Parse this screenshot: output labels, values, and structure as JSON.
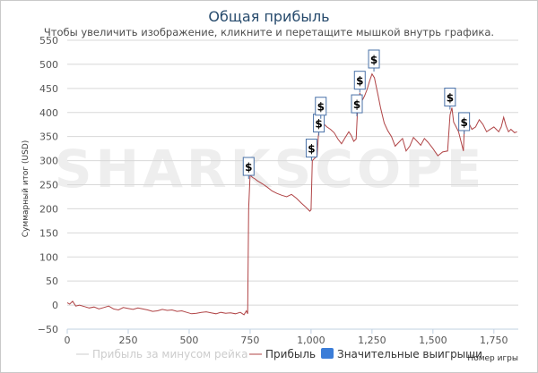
{
  "chart_data": {
    "type": "line",
    "title": "Общая прибыль",
    "subtitle": "Чтобы увеличить изображение, кликните и перетащите мышкой внутрь графика.",
    "ylabel": "Суммарный итог (USD)",
    "xlabel": "Номер игры",
    "xlim": [
      0,
      1850
    ],
    "ylim": [
      -50,
      550
    ],
    "x_ticks": [
      0,
      250,
      500,
      750,
      1000,
      1250,
      1500,
      1750
    ],
    "x_tick_labels": [
      "0",
      "250",
      "500",
      "750",
      "1,000",
      "1,250",
      "1,500",
      "1,750"
    ],
    "y_ticks": [
      -50,
      0,
      50,
      100,
      150,
      200,
      250,
      300,
      350,
      400,
      450,
      500,
      550
    ],
    "y_tick_labels": [
      "−50",
      "0",
      "50",
      "100",
      "150",
      "200",
      "250",
      "300",
      "350",
      "400",
      "450",
      "500",
      "550"
    ],
    "grid": "horizontal",
    "watermark": "SHARKSCOPE",
    "colors": {
      "profit": "#b04446",
      "no_rake": "#cccccc",
      "big_wins": "#3b7dd8",
      "flag_border": "#4a72a8"
    },
    "series": [
      {
        "name": "Прибыль",
        "x": [
          0,
          10,
          22,
          35,
          50,
          70,
          90,
          110,
          130,
          150,
          170,
          190,
          210,
          230,
          250,
          270,
          290,
          310,
          330,
          350,
          370,
          390,
          410,
          430,
          450,
          470,
          490,
          510,
          530,
          550,
          570,
          590,
          610,
          630,
          650,
          670,
          690,
          710,
          725,
          735,
          740,
          744,
          750,
          760,
          770,
          780,
          800,
          820,
          840,
          860,
          880,
          900,
          920,
          940,
          960,
          975,
          985,
          995,
          1000,
          1005,
          1015,
          1025,
          1030,
          1035,
          1040,
          1045,
          1055,
          1065,
          1080,
          1095,
          1110,
          1125,
          1140,
          1155,
          1165,
          1175,
          1185,
          1190,
          1200,
          1210,
          1220,
          1230,
          1240,
          1250,
          1260,
          1265,
          1275,
          1285,
          1300,
          1315,
          1330,
          1345,
          1360,
          1375,
          1390,
          1405,
          1420,
          1435,
          1450,
          1465,
          1480,
          1500,
          1520,
          1540,
          1560,
          1570,
          1578,
          1585,
          1595,
          1605,
          1615,
          1625,
          1630,
          1640,
          1650,
          1660,
          1675,
          1690,
          1705,
          1720,
          1735,
          1750,
          1760,
          1770,
          1780,
          1790,
          1800,
          1810,
          1820,
          1835,
          1845
        ],
        "y": [
          5,
          2,
          8,
          -2,
          0,
          -3,
          -6,
          -4,
          -8,
          -5,
          -2,
          -8,
          -10,
          -5,
          -7,
          -9,
          -6,
          -8,
          -10,
          -13,
          -12,
          -9,
          -11,
          -10,
          -13,
          -12,
          -15,
          -18,
          -17,
          -15,
          -14,
          -16,
          -18,
          -15,
          -17,
          -16,
          -18,
          -15,
          -20,
          -12,
          -18,
          200,
          270,
          265,
          262,
          258,
          252,
          245,
          237,
          232,
          228,
          225,
          230,
          222,
          212,
          205,
          200,
          195,
          198,
          300,
          305,
          310,
          350,
          375,
          365,
          385,
          375,
          370,
          365,
          358,
          345,
          335,
          348,
          360,
          352,
          340,
          345,
          400,
          440,
          425,
          435,
          448,
          465,
          480,
          472,
          460,
          435,
          410,
          378,
          362,
          350,
          330,
          338,
          346,
          320,
          330,
          348,
          340,
          332,
          346,
          338,
          325,
          310,
          318,
          320,
          395,
          410,
          380,
          370,
          360,
          340,
          320,
          385,
          370,
          375,
          365,
          370,
          385,
          375,
          360,
          365,
          370,
          365,
          360,
          370,
          390,
          372,
          360,
          365,
          358,
          360
        ]
      }
    ],
    "big_wins": [
      {
        "x": 744,
        "y": 262
      },
      {
        "x": 1002,
        "y": 300
      },
      {
        "x": 1032,
        "y": 352
      },
      {
        "x": 1040,
        "y": 387
      },
      {
        "x": 1188,
        "y": 392
      },
      {
        "x": 1200,
        "y": 441
      },
      {
        "x": 1258,
        "y": 485
      },
      {
        "x": 1570,
        "y": 406
      },
      {
        "x": 1628,
        "y": 355
      }
    ],
    "legend": {
      "items": [
        {
          "label": "Прибыль за минусом рейка",
          "enabled": false
        },
        {
          "label": "Прибыль",
          "enabled": true
        },
        {
          "label": "Значительные выигрыши",
          "enabled": true
        }
      ],
      "flag_symbol": "$"
    }
  }
}
